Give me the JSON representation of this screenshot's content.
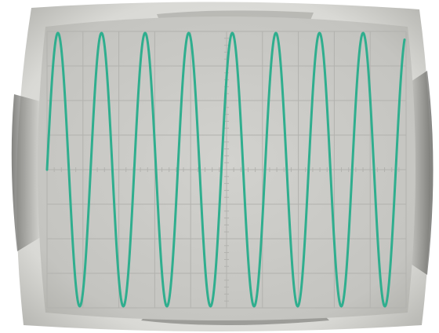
{
  "scope": {
    "trace_color": "#2fae8e",
    "screen_color": "#c9c9c6",
    "grid_color": "#b2b2ae",
    "bezel_color": "#d8d8d5",
    "trace": {
      "waveform": "sine",
      "cycles_visible": 8.2,
      "start_phase": "zero-crossing-rising"
    },
    "graticule": {
      "major_divisions_x": 10,
      "major_divisions_y": 8,
      "minor_ticks_on_axes": true
    }
  }
}
